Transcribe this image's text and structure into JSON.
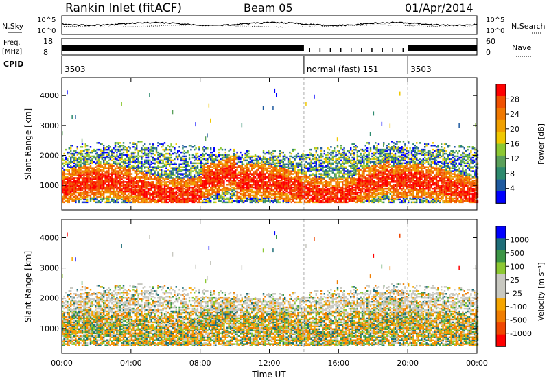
{
  "header": {
    "title": "Rankin Inlet (fitACF)",
    "beam": "Beam 05",
    "date": "01/Apr/2014"
  },
  "labels": {
    "nsky": "N.Sky",
    "nsearch": "N.Search",
    "freq": "Freq.",
    "freq_unit": "[MHz]",
    "nave": "Nave",
    "cpid": "CPID",
    "time_axis": "Time UT",
    "slant_range": "Slant Range [km]",
    "power_label": "Power [dB]",
    "velocity_label": "Velocity [m s⁻¹]"
  },
  "noise_panel": {
    "left_ticks": [
      "10^5",
      "10^0"
    ],
    "right_ticks": [
      "10^5",
      "10^0"
    ]
  },
  "freq_panel": {
    "left_ticks": [
      "18",
      "8"
    ],
    "right_ticks": [
      "60",
      "0"
    ]
  },
  "cpid_segments": [
    {
      "label": "3503",
      "start_hour": 0,
      "end_hour": 14
    },
    {
      "label": "normal (fast) 151",
      "start_hour": 14,
      "end_hour": 20
    },
    {
      "label": "3503",
      "start_hour": 20,
      "end_hour": 24
    }
  ],
  "colors": {
    "power": [
      "#0000ff",
      "#1e5aa0",
      "#2d8a6e",
      "#5aa05a",
      "#8cc832",
      "#f0c800",
      "#f0a000",
      "#f07800",
      "#f05000",
      "#ff0000"
    ],
    "velocity": [
      "#ff0000",
      "#f04600",
      "#f07d00",
      "#f5a500",
      "#c8c8c0",
      "#c8c8c0",
      "#8cc832",
      "#3c9646",
      "#1e6e78",
      "#0000ff"
    ]
  },
  "chart_data": [
    {
      "type": "heatmap",
      "name": "power",
      "xlabel": "Time UT",
      "ylabel": "Slant Range [km]",
      "xlim_hours": [
        0,
        24
      ],
      "ylim_km": [
        180,
        4600
      ],
      "x_ticks": [
        "00:00",
        "04:00",
        "08:00",
        "12:00",
        "16:00",
        "20:00",
        "00:00"
      ],
      "y_ticks": [
        1000,
        2000,
        3000,
        4000
      ],
      "colorbar": {
        "label": "Power [dB]",
        "min": 0,
        "max": 32,
        "ticks": [
          "4",
          "8",
          "12",
          "16",
          "20",
          "24",
          "28"
        ]
      },
      "mode_change_hours": [
        14,
        20
      ]
    },
    {
      "type": "heatmap",
      "name": "velocity",
      "xlabel": "Time UT",
      "ylabel": "Slant Range [km]",
      "xlim_hours": [
        0,
        24
      ],
      "ylim_km": [
        180,
        4600
      ],
      "x_ticks": [
        "00:00",
        "04:00",
        "08:00",
        "12:00",
        "16:00",
        "20:00",
        "00:00"
      ],
      "y_ticks": [
        1000,
        2000,
        3000,
        4000
      ],
      "colorbar": {
        "label": "Velocity [m s⁻¹]",
        "ticks": [
          "1000",
          "500",
          "100",
          "25",
          "-25",
          "-100",
          "-500",
          "-1000"
        ]
      },
      "mode_change_hours": [
        14,
        20
      ]
    }
  ]
}
